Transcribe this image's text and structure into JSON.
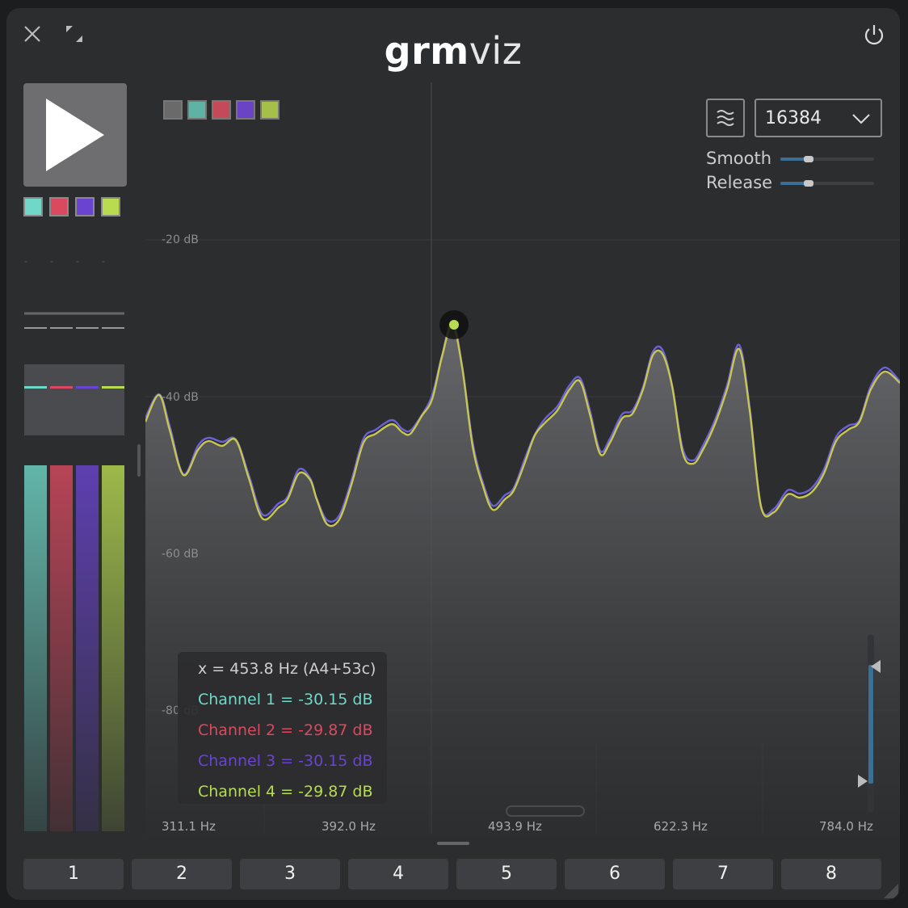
{
  "window": {
    "title_bold": "grm",
    "title_light": "viz"
  },
  "legend": {
    "colors": [
      "#6a6a6a",
      "#5fb3a5",
      "#c44a5a",
      "#6a44c4",
      "#a5bf4a"
    ]
  },
  "channels": {
    "colors": [
      "#6fd8c8",
      "#d94a60",
      "#6a44d0",
      "#b8dc50"
    ],
    "meter_levels": [
      0.84,
      0.84,
      0.84,
      0.84
    ]
  },
  "controls": {
    "fft_size": "16384",
    "mode_icon": "waves-icon",
    "smooth_label": "Smooth",
    "smooth_value": 0.3,
    "release_label": "Release",
    "release_value": 0.3
  },
  "plot": {
    "db_ticks": [
      "-20 dB",
      "-40 dB",
      "-60 dB",
      "-80 dB"
    ],
    "hz_ticks": [
      "311.1 Hz",
      "392.0 Hz",
      "493.9 Hz",
      "622.3 Hz",
      "784.0 Hz"
    ],
    "line_colors": {
      "channel_3": "#6b62d8",
      "channel_4": "#c6c650"
    }
  },
  "tooltip": {
    "x": "x = 453.8 Hz (A4+53c)",
    "ch1": "Channel 1 = -30.15 dB",
    "ch2": "Channel 2 = -29.87 dB",
    "ch3": "Channel 3 = -30.15 dB",
    "ch4": "Channel 4 = -29.87 dB"
  },
  "channel_buttons": [
    "1",
    "2",
    "3",
    "4",
    "5",
    "6",
    "7",
    "8"
  ]
}
